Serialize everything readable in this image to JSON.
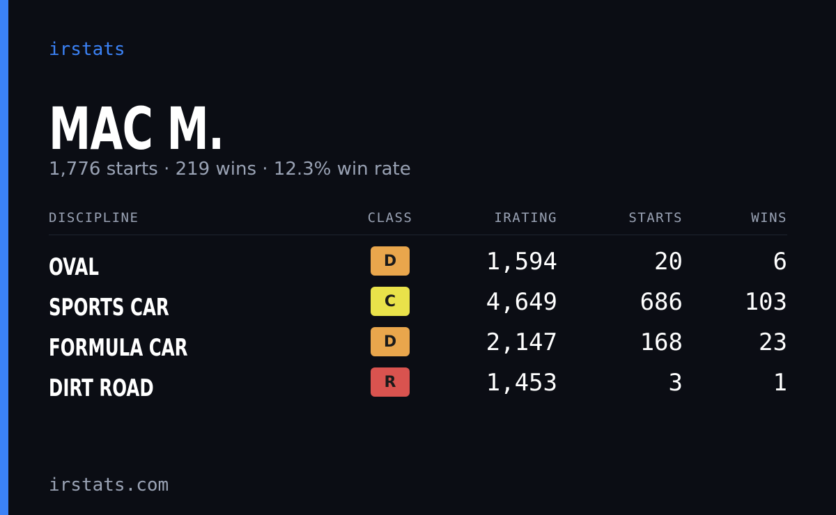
{
  "brand": "irstats",
  "driver": {
    "name": "MAC M.",
    "summary": "1,776 starts · 219 wins · 12.3% win rate"
  },
  "table": {
    "headers": [
      "DISCIPLINE",
      "CLASS",
      "IRATING",
      "STARTS",
      "WINS"
    ],
    "rows": [
      {
        "discipline": "OVAL",
        "class": "D",
        "class_color": "#e9a64c",
        "irating": "1,594",
        "starts": "20",
        "wins": "6"
      },
      {
        "discipline": "SPORTS CAR",
        "class": "C",
        "class_color": "#e9e24a",
        "irating": "4,649",
        "starts": "686",
        "wins": "103"
      },
      {
        "discipline": "FORMULA CAR",
        "class": "D",
        "class_color": "#e9a64c",
        "irating": "2,147",
        "starts": "168",
        "wins": "23"
      },
      {
        "discipline": "DIRT ROAD",
        "class": "R",
        "class_color": "#d9534f",
        "irating": "1,453",
        "starts": "3",
        "wins": "1"
      }
    ]
  },
  "footer": "irstats.com"
}
